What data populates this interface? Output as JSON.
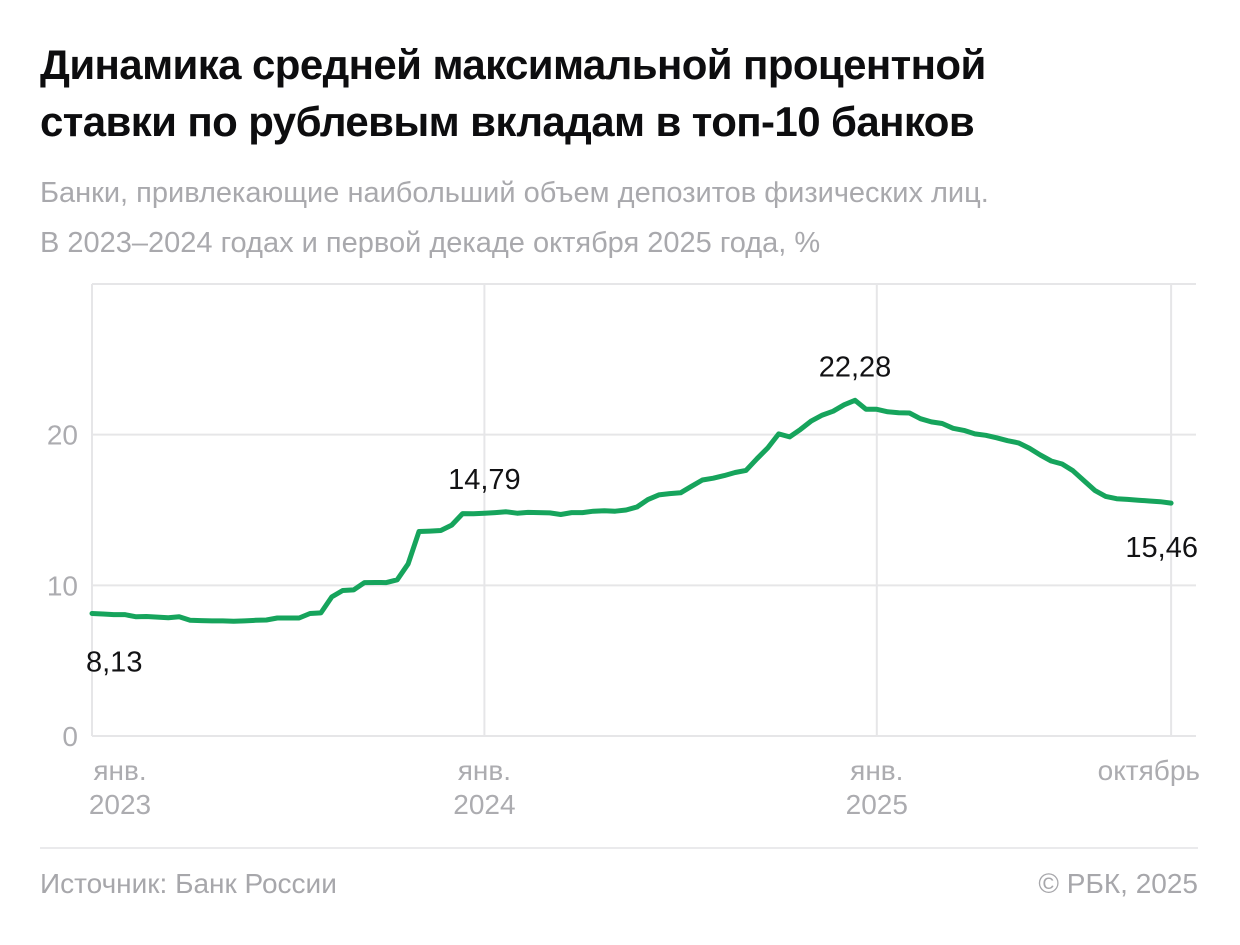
{
  "header": {
    "title": "Динамика средней максимальной процентной\nставки по рублевым вкладам в топ-10 банков",
    "subtitle": "Банки, привлекающие наибольший объем депозитов физических лиц.\nВ 2023–2024 годах и первой декаде октября 2025 года, %"
  },
  "chart_data": {
    "type": "line",
    "unit": "%",
    "x_axis_description": "decades (10-day periods) from January 2023 to first decade of October 2025",
    "ylim": [
      0,
      30
    ],
    "y_ticks": [
      0,
      10,
      20
    ],
    "grid": true,
    "line_color": "#16a45c",
    "x_ticks": [
      {
        "index": 0,
        "label": "янв.\n2023"
      },
      {
        "index": 36,
        "label": "янв.\n2024"
      },
      {
        "index": 72,
        "label": "янв.\n2025"
      },
      {
        "index": 99,
        "label": "октябрь"
      }
    ],
    "values": [
      8.13,
      8.1,
      8.06,
      8.06,
      7.92,
      7.93,
      7.89,
      7.85,
      7.91,
      7.68,
      7.66,
      7.64,
      7.64,
      7.61,
      7.64,
      7.68,
      7.7,
      7.83,
      7.83,
      7.83,
      8.13,
      8.17,
      9.23,
      9.66,
      9.7,
      10.18,
      10.19,
      10.18,
      10.37,
      11.42,
      13.57,
      13.6,
      13.64,
      14.0,
      14.76,
      14.75,
      14.79,
      14.83,
      14.88,
      14.79,
      14.84,
      14.83,
      14.81,
      14.7,
      14.83,
      14.83,
      14.92,
      14.95,
      14.92,
      15.0,
      15.2,
      15.69,
      16.0,
      16.09,
      16.14,
      16.57,
      16.99,
      17.11,
      17.28,
      17.49,
      17.63,
      18.4,
      19.12,
      20.05,
      19.85,
      20.35,
      20.91,
      21.3,
      21.56,
      21.98,
      22.28,
      21.69,
      21.68,
      21.52,
      21.45,
      21.44,
      21.06,
      20.85,
      20.74,
      20.42,
      20.28,
      20.05,
      19.96,
      19.79,
      19.6,
      19.45,
      19.1,
      18.65,
      18.25,
      18.05,
      17.6,
      16.95,
      16.3,
      15.9,
      15.75,
      15.7,
      15.65,
      15.6,
      15.55,
      15.46
    ],
    "annotations": [
      {
        "label": "8,13",
        "index": 0,
        "value": 8.13,
        "placement": "below-start"
      },
      {
        "label": "14,79",
        "index": 36,
        "value": 14.79,
        "placement": "above"
      },
      {
        "label": "22,28",
        "index": 70,
        "value": 22.28,
        "placement": "above"
      },
      {
        "label": "15,46",
        "index": 99,
        "value": 15.46,
        "placement": "below-end"
      }
    ]
  },
  "footer": {
    "source": "Источник: Банк России",
    "copyright": "© РБК, 2025"
  }
}
